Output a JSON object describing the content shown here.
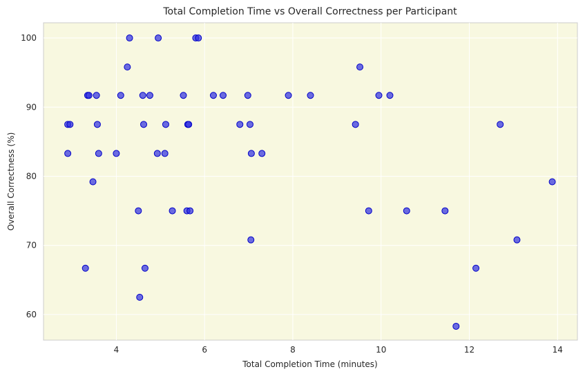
{
  "chart_data": {
    "type": "scatter",
    "title": "Total Completion Time vs Overall Correctness per Participant",
    "xlabel": "Total Completion Time (minutes)",
    "ylabel": "Overall Correctness (%)",
    "xlim": [
      2.35,
      14.45
    ],
    "ylim": [
      56.3,
      102.2
    ],
    "xticks": [
      4,
      6,
      8,
      10,
      12,
      14
    ],
    "yticks": [
      60,
      70,
      80,
      90,
      100
    ],
    "grid": true,
    "legend": "none",
    "colors": {
      "background": "#f8f8e0",
      "point_fill": "#2f2fe0",
      "point_edge": "#0000c8",
      "grid": "#ffffff",
      "frame": "#cccccc"
    },
    "points": [
      {
        "x": 2.9,
        "y": 87.5
      },
      {
        "x": 2.95,
        "y": 87.5
      },
      {
        "x": 2.9,
        "y": 83.3
      },
      {
        "x": 3.3,
        "y": 66.7
      },
      {
        "x": 3.35,
        "y": 91.7
      },
      {
        "x": 3.38,
        "y": 91.7
      },
      {
        "x": 3.47,
        "y": 79.2
      },
      {
        "x": 3.55,
        "y": 91.7
      },
      {
        "x": 3.57,
        "y": 87.5
      },
      {
        "x": 3.6,
        "y": 83.3
      },
      {
        "x": 4.0,
        "y": 83.3
      },
      {
        "x": 4.1,
        "y": 91.7
      },
      {
        "x": 4.25,
        "y": 95.8
      },
      {
        "x": 4.3,
        "y": 100
      },
      {
        "x": 4.5,
        "y": 75
      },
      {
        "x": 4.53,
        "y": 62.5
      },
      {
        "x": 4.6,
        "y": 91.7
      },
      {
        "x": 4.62,
        "y": 87.5
      },
      {
        "x": 4.65,
        "y": 66.7
      },
      {
        "x": 4.76,
        "y": 91.7
      },
      {
        "x": 4.93,
        "y": 83.3
      },
      {
        "x": 4.95,
        "y": 100
      },
      {
        "x": 5.1,
        "y": 83.3
      },
      {
        "x": 5.12,
        "y": 87.5
      },
      {
        "x": 5.27,
        "y": 75
      },
      {
        "x": 5.52,
        "y": 91.7
      },
      {
        "x": 5.6,
        "y": 75
      },
      {
        "x": 5.62,
        "y": 87.5
      },
      {
        "x": 5.64,
        "y": 87.5
      },
      {
        "x": 5.67,
        "y": 75
      },
      {
        "x": 5.8,
        "y": 100
      },
      {
        "x": 5.86,
        "y": 100
      },
      {
        "x": 6.2,
        "y": 91.7
      },
      {
        "x": 6.42,
        "y": 91.7
      },
      {
        "x": 6.8,
        "y": 87.5
      },
      {
        "x": 6.98,
        "y": 91.7
      },
      {
        "x": 7.03,
        "y": 87.5
      },
      {
        "x": 7.05,
        "y": 70.8
      },
      {
        "x": 7.06,
        "y": 83.3
      },
      {
        "x": 7.3,
        "y": 83.3
      },
      {
        "x": 7.9,
        "y": 91.7
      },
      {
        "x": 8.4,
        "y": 91.7
      },
      {
        "x": 9.42,
        "y": 87.5
      },
      {
        "x": 9.52,
        "y": 95.8
      },
      {
        "x": 9.72,
        "y": 75
      },
      {
        "x": 9.95,
        "y": 91.7
      },
      {
        "x": 10.2,
        "y": 91.7
      },
      {
        "x": 10.58,
        "y": 75
      },
      {
        "x": 11.45,
        "y": 75
      },
      {
        "x": 11.7,
        "y": 58.3
      },
      {
        "x": 12.15,
        "y": 66.7
      },
      {
        "x": 12.7,
        "y": 87.5
      },
      {
        "x": 13.08,
        "y": 70.8
      },
      {
        "x": 13.88,
        "y": 79.2
      }
    ]
  }
}
